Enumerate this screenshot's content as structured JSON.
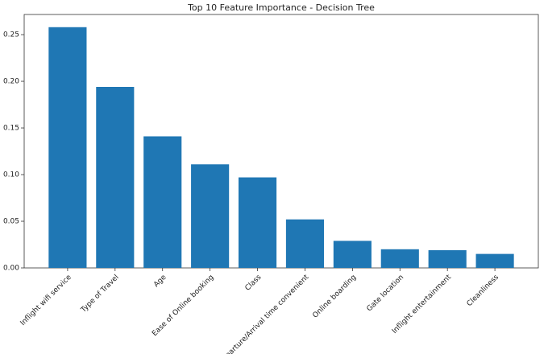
{
  "chart_data": {
    "type": "bar",
    "title": "Top 10 Feature Importance - Decision Tree",
    "categories": [
      "Inflight wifi service",
      "Type of Travel",
      "Age",
      "Ease of Online booking",
      "Class",
      "Departure/Arrival time convenient",
      "Online boarding",
      "Gate location",
      "Inflight entertainment",
      "Cleanliness"
    ],
    "values": [
      0.258,
      0.194,
      0.141,
      0.111,
      0.097,
      0.052,
      0.029,
      0.02,
      0.019,
      0.015
    ],
    "color": "#1f77b4",
    "ylim": [
      0,
      0.2716
    ],
    "yticks": [
      {
        "value": 0,
        "label": "0.00"
      },
      {
        "value": 0.05,
        "label": "0.05"
      },
      {
        "value": 0.1,
        "label": "0.10"
      },
      {
        "value": 0.15,
        "label": "0.15"
      },
      {
        "value": 0.2,
        "label": "0.20"
      },
      {
        "value": 0.25,
        "label": "0.25"
      }
    ],
    "grid": false
  }
}
